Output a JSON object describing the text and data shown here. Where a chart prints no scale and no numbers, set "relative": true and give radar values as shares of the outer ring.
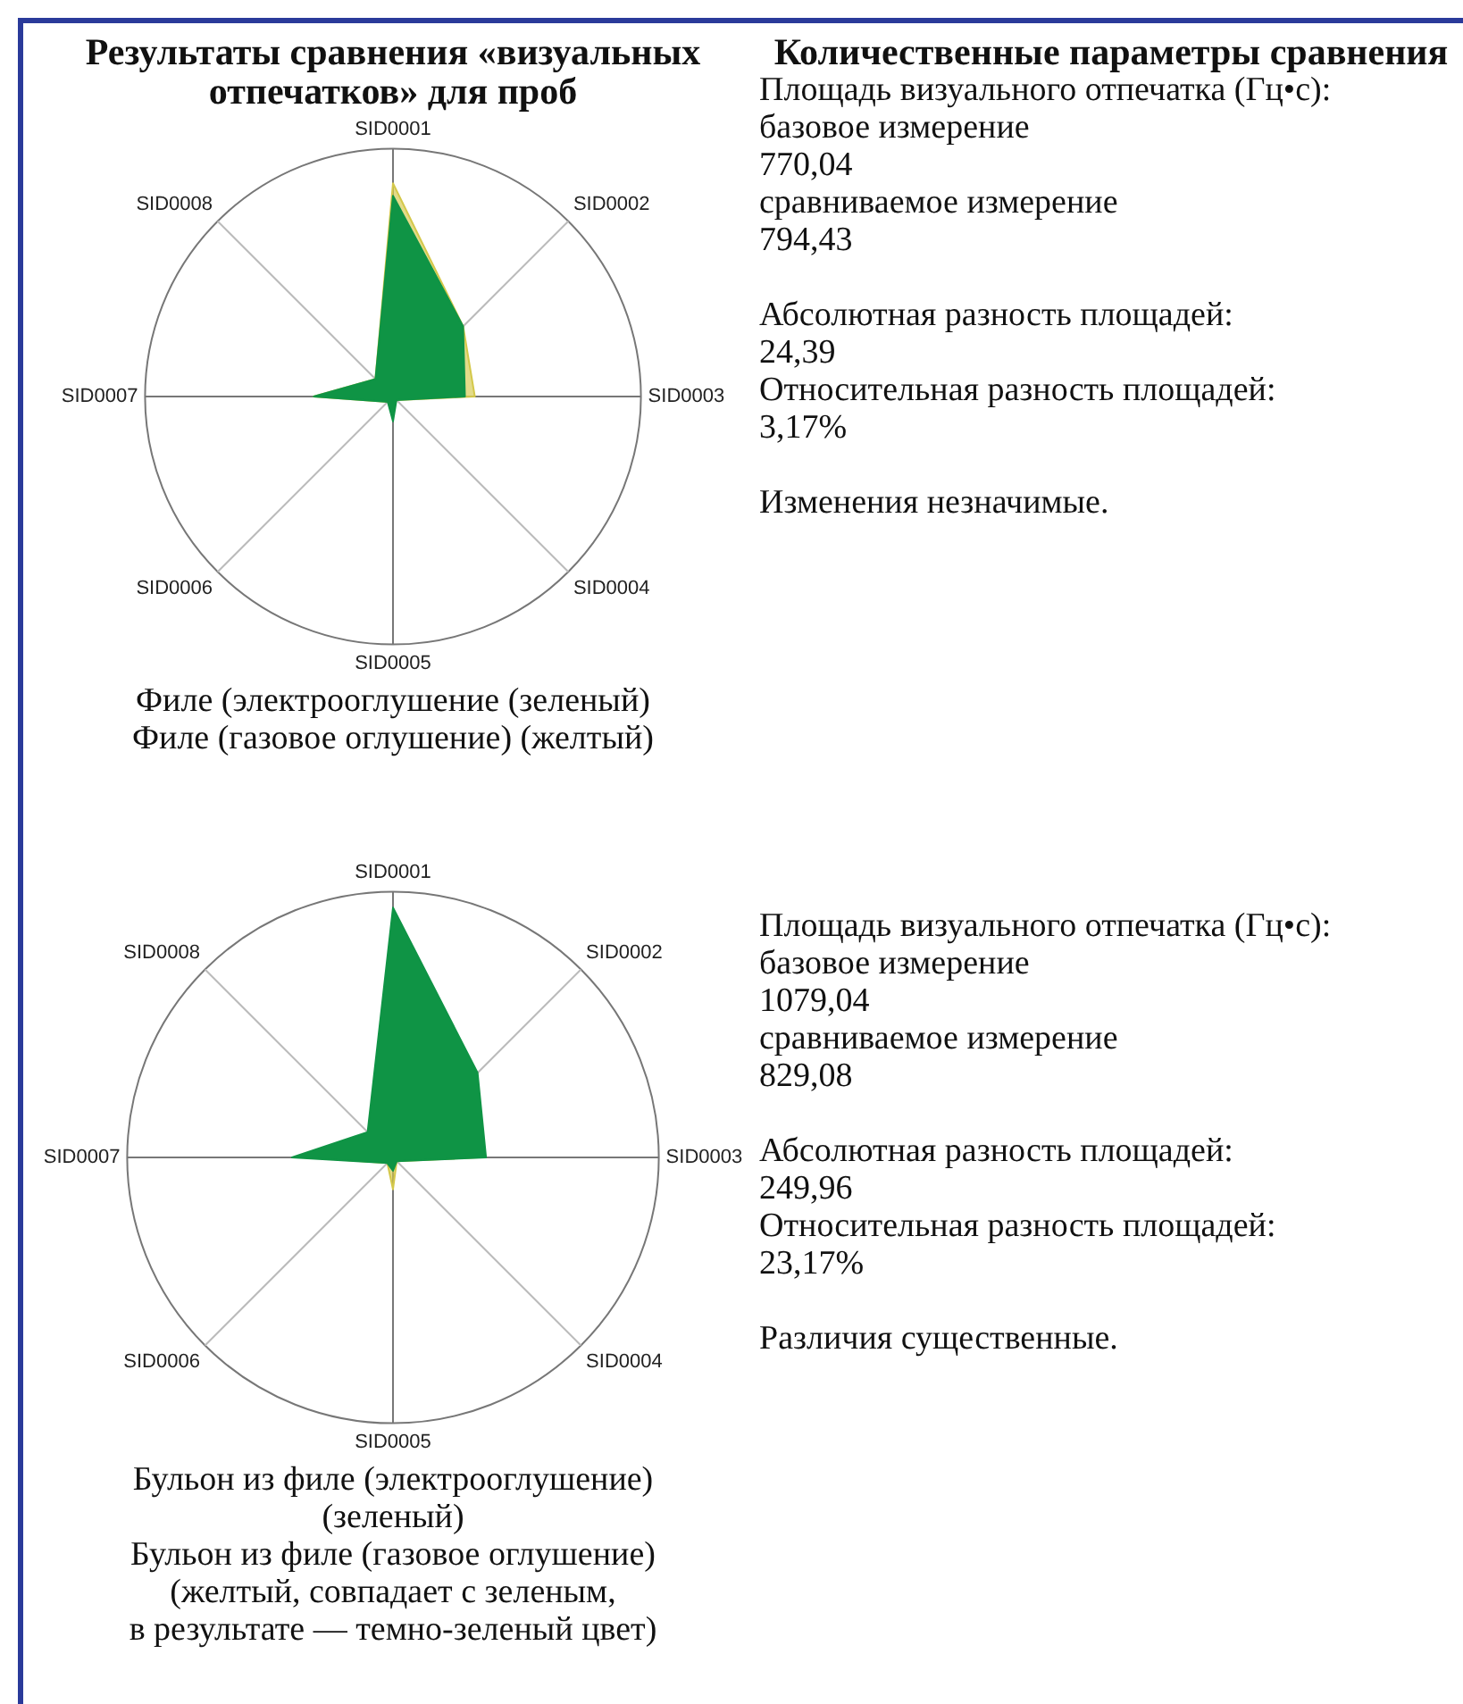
{
  "chart_data": [
    {
      "type": "radar",
      "title": "Результаты сравнения «визуальных отпечатков» для проб",
      "categories": [
        "SID0001",
        "SID0002",
        "SID0003",
        "SID0004",
        "SID0005",
        "SID0006",
        "SID0007",
        "SID0008"
      ],
      "relative": true,
      "grid": true,
      "legend": false,
      "marker": "none",
      "series": [
        {
          "color": "#0f9445",
          "values": [
            0.81,
            0.4,
            0.29,
            0.02,
            0.1,
            0.03,
            0.32,
            0.1
          ]
        },
        {
          "color": "#d4c84a",
          "values": [
            0.86,
            0.4,
            0.33,
            0.02,
            0.05,
            0.03,
            0.32,
            0.1
          ]
        }
      ],
      "annotations": [
        "Филе (электрооглушение (зеленый)",
        "Филе (газовое оглушение) (желтый)"
      ]
    },
    {
      "type": "other",
      "title": "Количественные параметры сравнения",
      "annotations": [
        "Площадь визуального отпечатка (Гц•с):\nбазовое измерение\n770,04\nсравниваемое измерение\n794,43",
        "Абсолютная разность площадей:\n24,39\nОтносительная разность площадей:\n3,17%",
        "Изменения незначимые."
      ]
    },
    {
      "type": "radar",
      "categories": [
        "SID0001",
        "SID0002",
        "SID0003",
        "SID0004",
        "SID0005",
        "SID0006",
        "SID0007",
        "SID0008"
      ],
      "relative": true,
      "grid": true,
      "legend": false,
      "marker": "none",
      "series": [
        {
          "color": "#0f9445",
          "values": [
            0.94,
            0.45,
            0.35,
            0.02,
            0.05,
            0.03,
            0.38,
            0.135
          ]
        },
        {
          "color": "#d4c84a",
          "values": [
            0.9,
            0.38,
            0.32,
            0.02,
            0.12,
            0.03,
            0.32,
            0.11
          ]
        }
      ],
      "annotations": [
        "Бульон из филе (электрооглушение)\n(зеленый)",
        "Бульон из филе (газовое оглушение)\n(желтый, совпадает с зеленым,\nв результате — темно-зеленый цвет)"
      ]
    },
    {
      "type": "other",
      "annotations": [
        "Площадь визуального отпечатка (Гц•с):\nбазовое измерение\n1079,04\nсравниваемое измерение\n829,08",
        "Абсолютная разность площадей:\n249,96\nОтносительная разность площадей:\n23,17%",
        "Различия существенные."
      ]
    }
  ]
}
